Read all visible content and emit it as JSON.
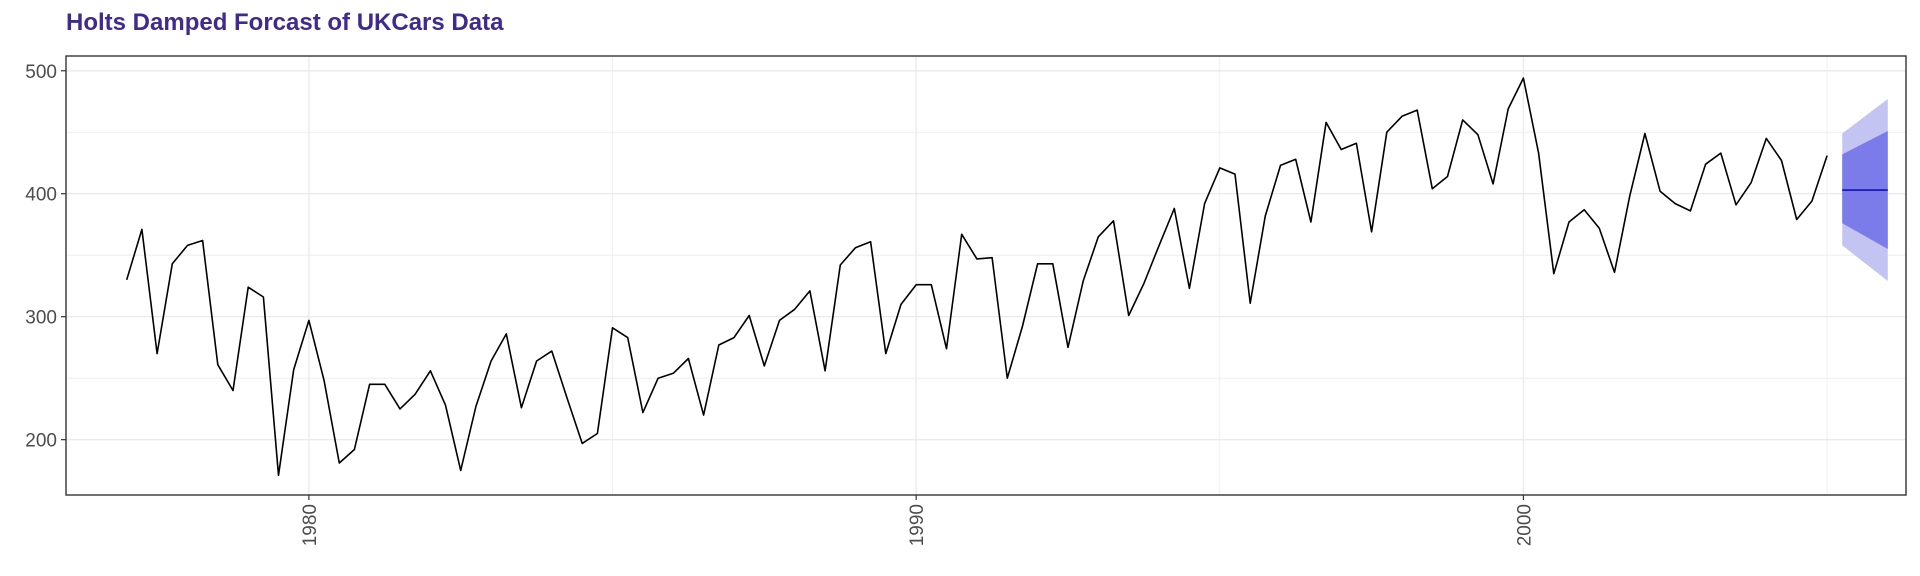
{
  "chart_data": {
    "type": "line",
    "title": "Holts Damped Forcast of UKCars Data",
    "xlabel": "",
    "ylabel": "",
    "xlim": [
      1976.0,
      2006.3
    ],
    "ylim": [
      155,
      512
    ],
    "x_ticks": [
      1980,
      1990,
      2000
    ],
    "x_tick_labels": [
      "1980",
      "1990",
      "2000"
    ],
    "y_ticks": [
      200,
      300,
      400,
      500
    ],
    "y_tick_labels": [
      "200",
      "300",
      "400",
      "500"
    ],
    "grid": true,
    "colors": {
      "title": "#3f2a8f",
      "line": "#000000",
      "forecast_line": "#0000aa",
      "pi80": "#7b7bea",
      "pi95": "#c4c4f3",
      "grid": "#ebebeb",
      "axis": "#333333"
    },
    "series": [
      {
        "start": 1977.0,
        "frequency": 4,
        "values": [
          330,
          371,
          270,
          343,
          358,
          362,
          261,
          240,
          324,
          316,
          171,
          257,
          297,
          248,
          181,
          192,
          245,
          245,
          225,
          237,
          256,
          228,
          175,
          227,
          264,
          286,
          226,
          264,
          272,
          234,
          197,
          205,
          291,
          283,
          222,
          250,
          254,
          266,
          220,
          277,
          283,
          301,
          260,
          297,
          306,
          321,
          256,
          342,
          356,
          361,
          270,
          310,
          326,
          326,
          274,
          367,
          347,
          348,
          250,
          292,
          343,
          343,
          275,
          329,
          365,
          378,
          301,
          327,
          358,
          388,
          323,
          392,
          421,
          416,
          311,
          382,
          423,
          428,
          377,
          458,
          436,
          441,
          369,
          450,
          463,
          468,
          404,
          414,
          460,
          448,
          408,
          469,
          494,
          433,
          335,
          377,
          387,
          372,
          336,
          398,
          449,
          402,
          392,
          386,
          424,
          433,
          391,
          409,
          445,
          427,
          379,
          394,
          431
        ]
      }
    ],
    "forecast": {
      "start": 2005.25,
      "end": 2006.0,
      "mean": 403,
      "lo80_start": 376,
      "lo80_end": 355,
      "hi80_start": 432,
      "hi80_end": 451,
      "lo95_start": 358,
      "lo95_end": 329,
      "hi95_start": 449,
      "hi95_end": 477
    }
  }
}
